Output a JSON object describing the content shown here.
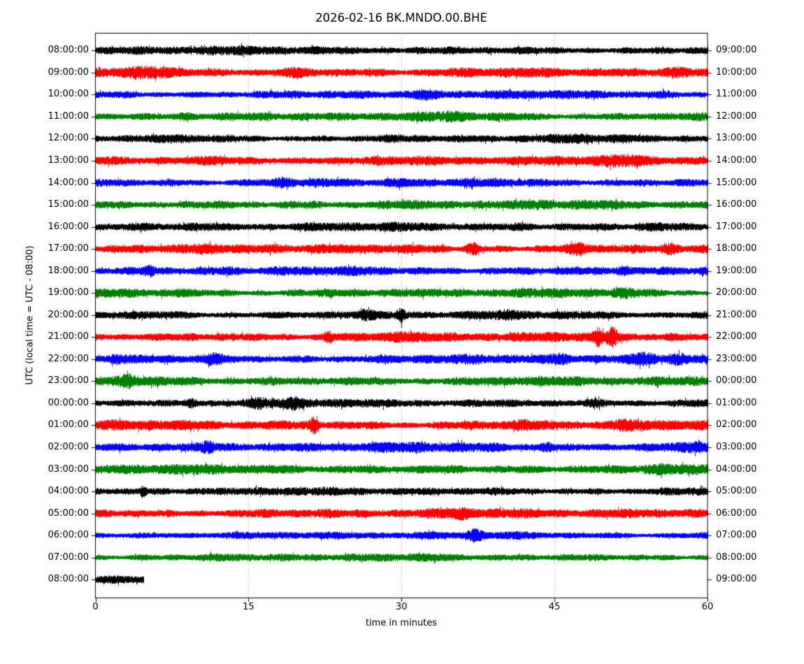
{
  "chart_data": {
    "type": "line",
    "subtype": "seismogram-helicorder-dayplot",
    "title": "2026-02-16 BK.MNDO.00.BHE",
    "xlabel": "time in minutes",
    "ylabel": "UTC (local time = UTC - 08:00)",
    "xlim": [
      0,
      60
    ],
    "x_ticks": [
      0,
      15,
      30,
      45,
      60
    ],
    "grid_minutes": [
      15,
      30,
      45
    ],
    "minutes_per_row": 60,
    "trace_colors_cycle": [
      "#000000",
      "#ff0000",
      "#0000ff",
      "#008000"
    ],
    "note": "25 rows of continuous band-limited seismic noise, one hour per row; events list visible amplitude bursts as {t:minute, a:relative extra amplitude, w:half-width minutes}",
    "rows": [
      {
        "left_label": "08:00:00",
        "right_label": "09:00:00",
        "color": "#000000",
        "amplitude": 1.0,
        "end_minute": 60,
        "events": []
      },
      {
        "left_label": "09:00:00",
        "right_label": "10:00:00",
        "color": "#ff0000",
        "amplitude": 1.1,
        "end_minute": 60,
        "events": [
          {
            "t": 6,
            "a": 0.45,
            "w": 2
          },
          {
            "t": 19,
            "a": 0.35,
            "w": 1.5
          },
          {
            "t": 57,
            "a": 0.35,
            "w": 1.2
          }
        ]
      },
      {
        "left_label": "10:00:00",
        "right_label": "11:00:00",
        "color": "#0000ff",
        "amplitude": 1.0,
        "end_minute": 60,
        "events": [
          {
            "t": 32,
            "a": 0.45,
            "w": 1.5
          },
          {
            "t": 56,
            "a": 0.3,
            "w": 1.0
          }
        ]
      },
      {
        "left_label": "11:00:00",
        "right_label": "12:00:00",
        "color": "#008000",
        "amplitude": 1.05,
        "end_minute": 60,
        "events": [
          {
            "t": 9,
            "a": 0.45,
            "w": 1.2
          },
          {
            "t": 35,
            "a": 0.3,
            "w": 1.5
          }
        ]
      },
      {
        "left_label": "12:00:00",
        "right_label": "13:00:00",
        "color": "#000000",
        "amplitude": 0.95,
        "end_minute": 60,
        "events": [
          {
            "t": 8,
            "a": 0.3,
            "w": 1.0
          },
          {
            "t": 47,
            "a": 0.3,
            "w": 1.5
          }
        ]
      },
      {
        "left_label": "13:00:00",
        "right_label": "14:00:00",
        "color": "#ff0000",
        "amplitude": 1.15,
        "end_minute": 60,
        "events": [
          {
            "t": 27,
            "a": 0.3,
            "w": 1.5
          },
          {
            "t": 52,
            "a": 0.3,
            "w": 1.5
          }
        ]
      },
      {
        "left_label": "14:00:00",
        "right_label": "15:00:00",
        "color": "#0000ff",
        "amplitude": 1.0,
        "end_minute": 60,
        "events": [
          {
            "t": 18.5,
            "a": 0.55,
            "w": 1.0
          },
          {
            "t": 30,
            "a": 0.3,
            "w": 1.0
          }
        ]
      },
      {
        "left_label": "15:00:00",
        "right_label": "16:00:00",
        "color": "#008000",
        "amplitude": 1.05,
        "end_minute": 60,
        "events": [
          {
            "t": 20,
            "a": 0.3,
            "w": 1.5
          },
          {
            "t": 43,
            "a": 0.3,
            "w": 1.5
          }
        ]
      },
      {
        "left_label": "16:00:00",
        "right_label": "17:00:00",
        "color": "#000000",
        "amplitude": 1.0,
        "end_minute": 60,
        "events": [
          {
            "t": 10,
            "a": 0.35,
            "w": 1.5
          },
          {
            "t": 42,
            "a": 0.4,
            "w": 2.0
          },
          {
            "t": 55,
            "a": 0.3,
            "w": 1.5
          }
        ]
      },
      {
        "left_label": "17:00:00",
        "right_label": "18:00:00",
        "color": "#ff0000",
        "amplitude": 1.1,
        "end_minute": 60,
        "events": [
          {
            "t": 22,
            "a": 0.5,
            "w": 0.8
          },
          {
            "t": 37,
            "a": 1.0,
            "w": 0.7
          },
          {
            "t": 47.5,
            "a": 0.75,
            "w": 1.0
          },
          {
            "t": 56.4,
            "a": 0.85,
            "w": 0.8
          }
        ]
      },
      {
        "left_label": "18:00:00",
        "right_label": "19:00:00",
        "color": "#0000ff",
        "amplitude": 1.05,
        "end_minute": 60,
        "events": [
          {
            "t": 5.3,
            "a": 0.75,
            "w": 0.5
          },
          {
            "t": 13,
            "a": 0.35,
            "w": 1.0
          },
          {
            "t": 51.6,
            "a": 0.95,
            "w": 0.7
          }
        ]
      },
      {
        "left_label": "19:00:00",
        "right_label": "20:00:00",
        "color": "#008000",
        "amplitude": 1.05,
        "end_minute": 60,
        "events": [
          {
            "t": 8.4,
            "a": 0.55,
            "w": 0.8
          },
          {
            "t": 52,
            "a": 0.4,
            "w": 1.5
          }
        ]
      },
      {
        "left_label": "20:00:00",
        "right_label": "21:00:00",
        "color": "#000000",
        "amplitude": 1.0,
        "end_minute": 60,
        "events": [
          {
            "t": 26.5,
            "a": 0.45,
            "w": 0.8
          },
          {
            "t": 29.9,
            "a": 1.5,
            "w": 0.35
          },
          {
            "t": 40,
            "a": 0.3,
            "w": 1.0
          }
        ]
      },
      {
        "left_label": "21:00:00",
        "right_label": "22:00:00",
        "color": "#ff0000",
        "amplitude": 1.1,
        "end_minute": 60,
        "events": [
          {
            "t": 22.8,
            "a": 0.85,
            "w": 0.4
          },
          {
            "t": 30,
            "a": 0.45,
            "w": 1.0
          },
          {
            "t": 49.3,
            "a": 1.5,
            "w": 0.5
          },
          {
            "t": 50.6,
            "a": 1.7,
            "w": 0.45
          },
          {
            "t": 56.4,
            "a": 0.95,
            "w": 0.6
          }
        ]
      },
      {
        "left_label": "22:00:00",
        "right_label": "23:00:00",
        "color": "#0000ff",
        "amplitude": 1.1,
        "end_minute": 60,
        "events": [
          {
            "t": 1.9,
            "a": 0.65,
            "w": 0.7
          },
          {
            "t": 11.5,
            "a": 0.55,
            "w": 0.8
          },
          {
            "t": 45.8,
            "a": 0.5,
            "w": 0.8
          },
          {
            "t": 54,
            "a": 0.65,
            "w": 1.2
          },
          {
            "t": 57,
            "a": 0.55,
            "w": 0.8
          }
        ]
      },
      {
        "left_label": "23:00:00",
        "right_label": "00:00:00",
        "color": "#008000",
        "amplitude": 1.1,
        "end_minute": 60,
        "events": [
          {
            "t": 3.2,
            "a": 0.85,
            "w": 0.8
          }
        ]
      },
      {
        "left_label": "00:00:00",
        "right_label": "01:00:00",
        "color": "#000000",
        "amplitude": 1.0,
        "end_minute": 60,
        "events": [
          {
            "t": 9.4,
            "a": 1.25,
            "w": 0.5
          },
          {
            "t": 16,
            "a": 0.45,
            "w": 0.8
          },
          {
            "t": 19.4,
            "a": 0.55,
            "w": 0.8
          },
          {
            "t": 49,
            "a": 0.35,
            "w": 1.0
          }
        ]
      },
      {
        "left_label": "01:00:00",
        "right_label": "02:00:00",
        "color": "#ff0000",
        "amplitude": 1.15,
        "end_minute": 60,
        "events": [
          {
            "t": 21.4,
            "a": 1.1,
            "w": 0.35
          },
          {
            "t": 41.7,
            "a": 0.65,
            "w": 0.8
          },
          {
            "t": 51.6,
            "a": 0.55,
            "w": 0.8
          }
        ]
      },
      {
        "left_label": "02:00:00",
        "right_label": "03:00:00",
        "color": "#0000ff",
        "amplitude": 1.15,
        "end_minute": 60,
        "events": [
          {
            "t": 11.1,
            "a": 0.65,
            "w": 0.7
          },
          {
            "t": 44.3,
            "a": 1.4,
            "w": 0.6
          },
          {
            "t": 59,
            "a": 0.55,
            "w": 1.0
          }
        ]
      },
      {
        "left_label": "03:00:00",
        "right_label": "04:00:00",
        "color": "#008000",
        "amplitude": 1.1,
        "end_minute": 60,
        "events": [
          {
            "t": 55,
            "a": 0.3,
            "w": 1.5
          }
        ]
      },
      {
        "left_label": "04:00:00",
        "right_label": "05:00:00",
        "color": "#000000",
        "amplitude": 0.95,
        "end_minute": 60,
        "events": [
          {
            "t": 4.6,
            "a": 1.4,
            "w": 0.3
          },
          {
            "t": 11,
            "a": 0.45,
            "w": 1.5
          }
        ]
      },
      {
        "left_label": "05:00:00",
        "right_label": "06:00:00",
        "color": "#ff0000",
        "amplitude": 1.1,
        "end_minute": 60,
        "events": [
          {
            "t": 22,
            "a": 0.3,
            "w": 1.0
          },
          {
            "t": 36,
            "a": 0.3,
            "w": 1.0
          }
        ]
      },
      {
        "left_label": "06:00:00",
        "right_label": "07:00:00",
        "color": "#0000ff",
        "amplitude": 0.9,
        "end_minute": 60,
        "events": [
          {
            "t": 37.2,
            "a": 1.15,
            "w": 0.6
          }
        ]
      },
      {
        "left_label": "07:00:00",
        "right_label": "08:00:00",
        "color": "#008000",
        "amplitude": 0.9,
        "end_minute": 60,
        "events": []
      },
      {
        "left_label": "08:00:00",
        "right_label": "09:00:00",
        "color": "#000000",
        "amplitude": 0.9,
        "end_minute": 4.7,
        "events": []
      }
    ]
  }
}
